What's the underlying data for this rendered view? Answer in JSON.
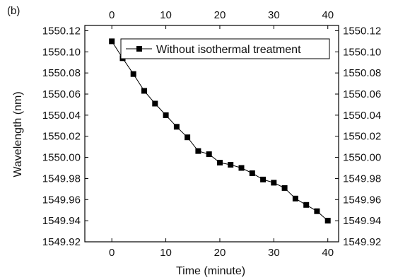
{
  "panel_label": "(b)",
  "chart_data": {
    "type": "line",
    "title": "",
    "xlabel": "Time (minute)",
    "ylabel": "Wavelength (nm)",
    "xlim": [
      -5,
      42
    ],
    "ylim": [
      1549.92,
      1550.125
    ],
    "x_ticks": [
      0,
      10,
      20,
      30,
      40
    ],
    "y_ticks": [
      1549.92,
      1549.94,
      1549.96,
      1549.98,
      1550.0,
      1550.02,
      1550.04,
      1550.06,
      1550.08,
      1550.1,
      1550.12
    ],
    "mirror_axes": true,
    "grid": false,
    "legend_position": "top-right",
    "series": [
      {
        "name": "Without isothermal treatment",
        "color": "#000000",
        "marker": "square",
        "line_style": "solid",
        "x": [
          0,
          2,
          4,
          6,
          8,
          10,
          12,
          14,
          16,
          18,
          20,
          22,
          24,
          26,
          28,
          30,
          32,
          34,
          36,
          38,
          40
        ],
        "y": [
          1550.11,
          1550.094,
          1550.079,
          1550.063,
          1550.051,
          1550.04,
          1550.029,
          1550.019,
          1550.006,
          1550.003,
          1549.995,
          1549.993,
          1549.99,
          1549.985,
          1549.979,
          1549.976,
          1549.971,
          1549.961,
          1549.955,
          1549.949,
          1549.94
        ]
      }
    ]
  }
}
